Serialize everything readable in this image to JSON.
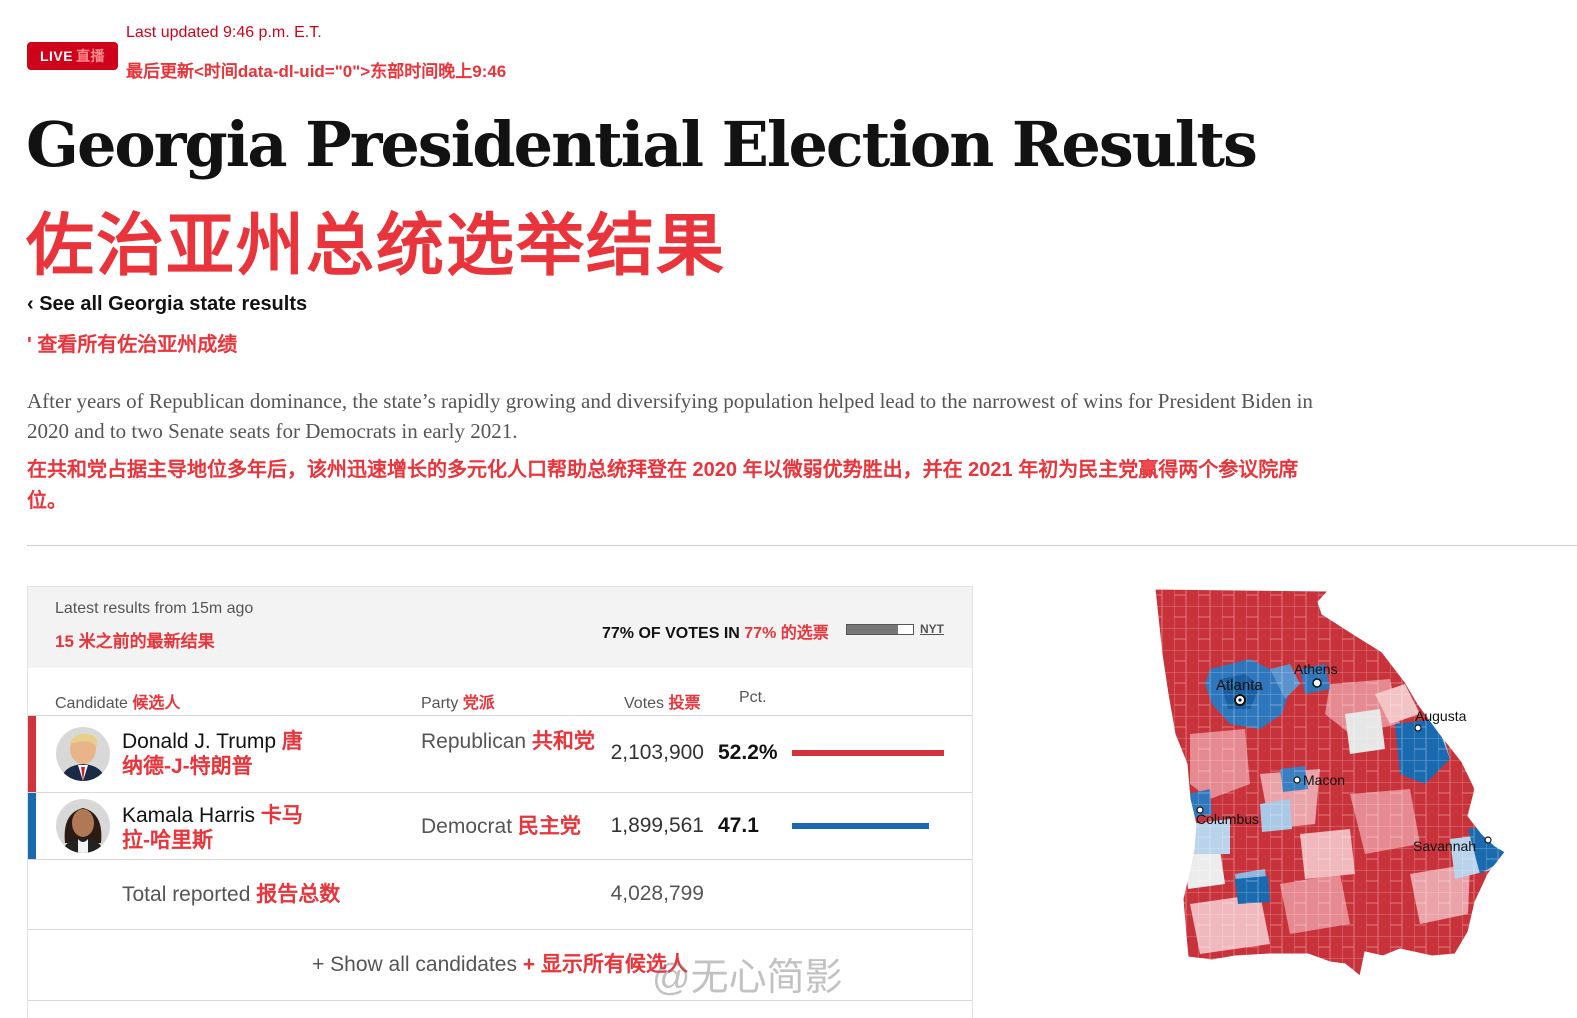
{
  "header": {
    "live_label": "LIVE",
    "live_label_cn": "直播",
    "last_updated": "Last updated 9:46 p.m. E.T.",
    "last_updated_cn": "最后更新<时间data-dl-uid=\"0\">东部时间晚上9:46"
  },
  "page": {
    "title": "Georgia Presidential Election Results",
    "title_cn": "佐治亚州总统选举结果",
    "back_link": "‹ See all Georgia state results",
    "back_link_cn": "' 查看所有佐治亚州成绩",
    "summary": "After years of Republican dominance, the state’s rapidly growing and diversifying population helped lead to the narrowest of wins for President Biden in 2020 and to two Senate seats for Democrats in early 2021.",
    "summary_cn": "在共和党占据主导地位多年后，该州迅速增长的多元化人口帮助总统拜登在 2020 年以微弱优势胜出，并在 2021 年初为民主党赢得两个参议院席位。"
  },
  "results": {
    "latest": "Latest results from 15m ago",
    "latest_cn": "15 米之前的最新结果",
    "votes_in": "77% OF VOTES IN",
    "votes_in_cn": "77% 的选票",
    "votes_in_fraction": 0.77,
    "source": "NYT",
    "columns": {
      "candidate": "Candidate",
      "candidate_cn": "候选人",
      "party": "Party",
      "party_cn": "党派",
      "votes": "Votes",
      "votes_cn": "投票",
      "pct": "Pct."
    },
    "candidates": [
      {
        "name": "Donald J. Trump",
        "name_cn": "唐纳德-J-特朗普",
        "party": "Republican",
        "party_cn": "共和党",
        "votes": "2,103,900",
        "pct": "52.2%",
        "pct_value": 52.2,
        "color": "#d0343a"
      },
      {
        "name": "Kamala Harris",
        "name_cn": "卡马拉-哈里斯",
        "party": "Democrat",
        "party_cn": "民主党",
        "votes": "1,899,561",
        "pct": "47.1",
        "pct_value": 47.1,
        "color": "#1a6aaf"
      }
    ],
    "total_label": "Total reported",
    "total_label_cn": "报告总数",
    "total_votes": "4,028,799",
    "show_all": "+ Show all candidates",
    "show_all_cn": "+ 显示所有候选人"
  },
  "map": {
    "cities": [
      "Athens",
      "Atlanta",
      "Augusta",
      "Macon",
      "Columbus",
      "Savannah"
    ]
  },
  "watermark": "@无心简影"
}
